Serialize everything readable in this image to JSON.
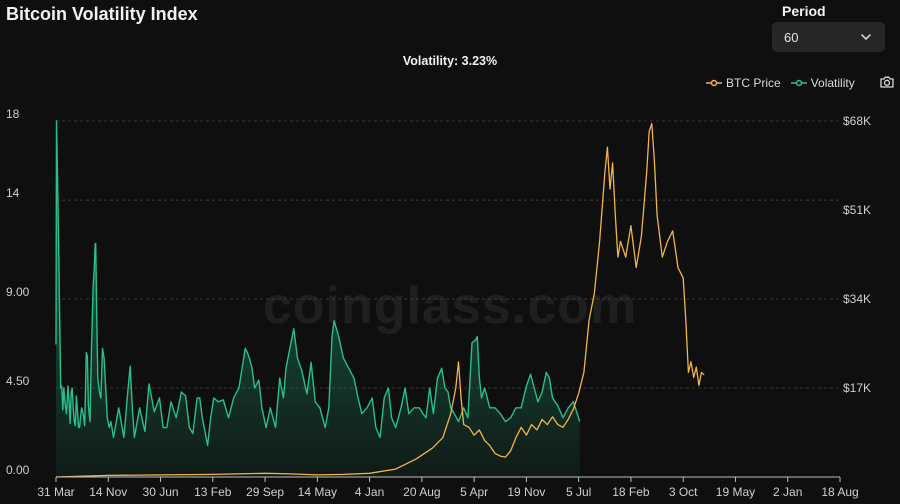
{
  "header": {
    "title": "Bitcoin Volatility Index"
  },
  "period": {
    "label": "Period",
    "value": "60"
  },
  "summary": {
    "text": "Volatility: 3.23%"
  },
  "watermark": "coinglass.com",
  "colors": {
    "btc": "#f0b548",
    "volatility": "#27c08c",
    "grid": "#3a3a3a",
    "axis_text": "#cfcfcf",
    "background": "#0f0f0f"
  },
  "icons": {
    "camera": "camera-icon",
    "dropdown": "chevron-down-icon"
  },
  "chart_data": {
    "type": "line",
    "title": "",
    "legend": {
      "placement": "top-right",
      "items": [
        "BTC Price",
        "Volatility"
      ]
    },
    "grid": {
      "horizontal": true,
      "style": "dashed"
    },
    "categories": [
      "31 Mar",
      "14 Nov",
      "30 Jun",
      "13 Feb",
      "29 Sep",
      "14 May",
      "4 Jan",
      "20 Aug",
      "5 Apr",
      "19 Nov",
      "5 Jul",
      "18 Feb",
      "3 Oct",
      "19 May",
      "2 Jan",
      "18 Aug"
    ],
    "y_left": {
      "ticks": [
        "0.00",
        "4.50",
        "9.00",
        "14",
        "18"
      ],
      "range": [
        0,
        18
      ]
    },
    "y_right": {
      "ticks": [
        "$17K",
        "$34K",
        "$51K",
        "$68K"
      ],
      "range": [
        0,
        68000
      ]
    },
    "series": [
      {
        "name": "Volatility",
        "axis": "left",
        "type": "area",
        "values": [
          [
            0,
            6.7
          ],
          [
            0.01,
            18
          ],
          [
            0.03,
            15
          ],
          [
            0.05,
            12
          ],
          [
            0.07,
            8
          ],
          [
            0.09,
            4.5
          ],
          [
            0.11,
            4.6
          ],
          [
            0.13,
            3.4
          ],
          [
            0.15,
            4.5
          ],
          [
            0.18,
            3.6
          ],
          [
            0.2,
            3.2
          ],
          [
            0.23,
            4.6
          ],
          [
            0.25,
            3.8
          ],
          [
            0.27,
            2.7
          ],
          [
            0.29,
            4.3
          ],
          [
            0.31,
            4.5
          ],
          [
            0.33,
            3.5
          ],
          [
            0.35,
            2.8
          ],
          [
            0.37,
            2.6
          ],
          [
            0.39,
            4.1
          ],
          [
            0.41,
            3.4
          ],
          [
            0.43,
            2.5
          ],
          [
            0.45,
            2.5
          ],
          [
            0.49,
            3.5
          ],
          [
            0.52,
            3.2
          ],
          [
            0.55,
            2.6
          ],
          [
            0.58,
            6.3
          ],
          [
            0.6,
            6.1
          ],
          [
            0.62,
            3.6
          ],
          [
            0.65,
            2.8
          ],
          [
            0.68,
            6.5
          ],
          [
            0.71,
            9.6
          ],
          [
            0.73,
            10.5
          ],
          [
            0.75,
            11.8
          ],
          [
            0.76,
            11.8
          ],
          [
            0.78,
            8
          ],
          [
            0.8,
            5
          ],
          [
            0.83,
            4.3
          ],
          [
            0.86,
            4
          ],
          [
            0.89,
            6.5
          ],
          [
            0.92,
            6
          ],
          [
            0.95,
            4.5
          ],
          [
            0.98,
            3
          ],
          [
            1.02,
            2.5
          ],
          [
            1.05,
            2.8
          ],
          [
            1.1,
            2
          ],
          [
            1.2,
            3.5
          ],
          [
            1.3,
            2
          ],
          [
            1.38,
            4.5
          ],
          [
            1.42,
            5.6
          ],
          [
            1.46,
            3.5
          ],
          [
            1.5,
            2
          ],
          [
            1.6,
            3.5
          ],
          [
            1.7,
            2.3
          ],
          [
            1.78,
            4.7
          ],
          [
            1.88,
            3.3
          ],
          [
            1.98,
            4.0
          ],
          [
            2.05,
            2.5
          ],
          [
            2.12,
            2.5
          ],
          [
            2.2,
            3.8
          ],
          [
            2.3,
            3
          ],
          [
            2.4,
            4.3
          ],
          [
            2.48,
            4.1
          ],
          [
            2.55,
            2.5
          ],
          [
            2.62,
            2.2
          ],
          [
            2.7,
            4.0
          ],
          [
            2.75,
            4.0
          ],
          [
            2.8,
            3
          ],
          [
            2.9,
            1.6
          ],
          [
            2.96,
            3
          ],
          [
            3.02,
            4
          ],
          [
            3.1,
            3.8
          ],
          [
            3.2,
            3.9
          ],
          [
            3.3,
            3
          ],
          [
            3.4,
            4
          ],
          [
            3.5,
            4.5
          ],
          [
            3.56,
            5.5
          ],
          [
            3.62,
            6.5
          ],
          [
            3.66,
            6.3
          ],
          [
            3.7,
            6
          ],
          [
            3.75,
            5.5
          ],
          [
            3.8,
            4.5
          ],
          [
            3.88,
            4.9
          ],
          [
            3.94,
            3.5
          ],
          [
            4.02,
            2.5
          ],
          [
            4.1,
            3.5
          ],
          [
            4.2,
            2.5
          ],
          [
            4.28,
            5
          ],
          [
            4.35,
            4
          ],
          [
            4.4,
            5.5
          ],
          [
            4.48,
            6.6
          ],
          [
            4.55,
            7.5
          ],
          [
            4.62,
            6.0
          ],
          [
            4.7,
            5.4
          ],
          [
            4.8,
            4.2
          ],
          [
            4.88,
            5.8
          ],
          [
            4.96,
            3.8
          ],
          [
            5.05,
            3.5
          ],
          [
            5.15,
            2.5
          ],
          [
            5.22,
            3.5
          ],
          [
            5.28,
            7.1
          ],
          [
            5.32,
            7.9
          ],
          [
            5.4,
            7.2
          ],
          [
            5.5,
            6
          ],
          [
            5.6,
            5.5
          ],
          [
            5.7,
            5.0
          ],
          [
            5.78,
            4
          ],
          [
            5.85,
            3.2
          ],
          [
            5.95,
            3.5
          ],
          [
            6.05,
            4.0
          ],
          [
            6.12,
            2.5
          ],
          [
            6.2,
            2
          ],
          [
            6.28,
            4
          ],
          [
            6.36,
            4.5
          ],
          [
            6.42,
            3
          ],
          [
            6.5,
            2.5
          ],
          [
            6.6,
            3.5
          ],
          [
            6.68,
            4.5
          ],
          [
            6.75,
            3.2
          ],
          [
            6.85,
            3.5
          ],
          [
            6.95,
            3.5
          ],
          [
            7.02,
            3.2
          ],
          [
            7.08,
            3
          ],
          [
            7.15,
            4.5
          ],
          [
            7.22,
            3.2
          ],
          [
            7.3,
            5
          ],
          [
            7.38,
            5.5
          ],
          [
            7.44,
            4.5
          ],
          [
            7.5,
            4.3
          ],
          [
            7.55,
            3.5
          ],
          [
            7.62,
            3.2
          ],
          [
            7.7,
            2.8
          ],
          [
            7.8,
            3.5
          ],
          [
            7.88,
            3.0
          ],
          [
            7.96,
            6.8
          ],
          [
            8.02,
            6.9
          ],
          [
            8.06,
            7.1
          ],
          [
            8.1,
            5
          ],
          [
            8.14,
            4
          ],
          [
            8.2,
            4.5
          ],
          [
            8.3,
            3.5
          ],
          [
            8.4,
            3.5
          ],
          [
            8.5,
            3.2
          ],
          [
            8.6,
            2.8
          ],
          [
            8.7,
            3.0
          ],
          [
            8.8,
            3.5
          ],
          [
            8.9,
            3.5
          ],
          [
            9.0,
            4.6
          ],
          [
            9.08,
            5.2
          ],
          [
            9.15,
            4.5
          ],
          [
            9.22,
            3.8
          ],
          [
            9.3,
            4.3
          ],
          [
            9.38,
            5.3
          ],
          [
            9.44,
            5
          ],
          [
            9.5,
            4.0
          ],
          [
            9.6,
            3.6
          ],
          [
            9.7,
            3
          ],
          [
            9.8,
            3.5
          ],
          [
            9.9,
            3.8
          ],
          [
            9.96,
            3.3
          ],
          [
            10.02,
            2.8
          ]
        ]
      },
      {
        "name": "BTC Price",
        "axis": "right",
        "type": "line",
        "values": [
          [
            0,
            0
          ],
          [
            1,
            300
          ],
          [
            2,
            400
          ],
          [
            3,
            500
          ],
          [
            4,
            700
          ],
          [
            4.5,
            600
          ],
          [
            5,
            400
          ],
          [
            5.5,
            500
          ],
          [
            6,
            700
          ],
          [
            6.5,
            1500
          ],
          [
            6.9,
            3500
          ],
          [
            7.2,
            5500
          ],
          [
            7.4,
            7500
          ],
          [
            7.55,
            12000
          ],
          [
            7.65,
            17000
          ],
          [
            7.7,
            22000
          ],
          [
            7.75,
            15000
          ],
          [
            7.8,
            10000
          ],
          [
            7.9,
            9500
          ],
          [
            8.0,
            8000
          ],
          [
            8.1,
            9000
          ],
          [
            8.2,
            7000
          ],
          [
            8.3,
            6000
          ],
          [
            8.4,
            4500
          ],
          [
            8.5,
            4000
          ],
          [
            8.6,
            3800
          ],
          [
            8.7,
            5000
          ],
          [
            8.8,
            7500
          ],
          [
            8.9,
            9500
          ],
          [
            9.0,
            8000
          ],
          [
            9.1,
            10000
          ],
          [
            9.2,
            9000
          ],
          [
            9.3,
            11000
          ],
          [
            9.4,
            10000
          ],
          [
            9.5,
            11500
          ],
          [
            9.6,
            10000
          ],
          [
            9.7,
            9500
          ],
          [
            9.8,
            11000
          ],
          [
            9.9,
            13000
          ],
          [
            10.0,
            16000
          ],
          [
            10.1,
            20000
          ],
          [
            10.2,
            30000
          ],
          [
            10.3,
            35000
          ],
          [
            10.4,
            45000
          ],
          [
            10.5,
            58000
          ],
          [
            10.55,
            63000
          ],
          [
            10.6,
            55000
          ],
          [
            10.65,
            60000
          ],
          [
            10.7,
            50000
          ],
          [
            10.75,
            42000
          ],
          [
            10.8,
            45000
          ],
          [
            10.9,
            42000
          ],
          [
            11.0,
            48000
          ],
          [
            11.1,
            40000
          ],
          [
            11.2,
            46000
          ],
          [
            11.3,
            58000
          ],
          [
            11.35,
            66000
          ],
          [
            11.4,
            67500
          ],
          [
            11.45,
            60000
          ],
          [
            11.5,
            50000
          ],
          [
            11.6,
            42000
          ],
          [
            11.7,
            45000
          ],
          [
            11.8,
            47000
          ],
          [
            11.9,
            40000
          ],
          [
            12.0,
            38000
          ],
          [
            12.05,
            30000
          ],
          [
            12.1,
            20000
          ],
          [
            12.15,
            22000
          ],
          [
            12.2,
            19000
          ],
          [
            12.25,
            21000
          ],
          [
            12.3,
            17500
          ],
          [
            12.35,
            20000
          ],
          [
            12.4,
            19500
          ]
        ]
      }
    ]
  }
}
